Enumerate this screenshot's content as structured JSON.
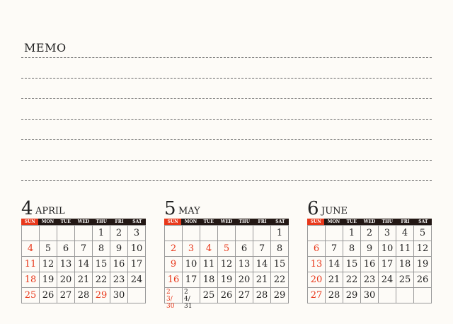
{
  "memo": {
    "title": "MEMO",
    "line_count": 7
  },
  "weekdays": [
    "SUN",
    "MON",
    "TUE",
    "WED",
    "THU",
    "FRI",
    "SAT"
  ],
  "accent_color": "#e8381b",
  "months": [
    {
      "number": "4",
      "name": "APRIL",
      "weeks": [
        [
          "",
          "",
          "",
          "",
          "1",
          "2",
          "3"
        ],
        [
          "4",
          "5",
          "6",
          "7",
          "8",
          "9",
          "10"
        ],
        [
          "11",
          "12",
          "13",
          "14",
          "15",
          "16",
          "17"
        ],
        [
          "18",
          "19",
          "20",
          "21",
          "22",
          "23",
          "24"
        ],
        [
          "25",
          "26",
          "27",
          "28",
          "29",
          "30",
          ""
        ]
      ],
      "red_days": [
        "4",
        "11",
        "18",
        "25",
        "29"
      ]
    },
    {
      "number": "5",
      "name": "MAY",
      "weeks": [
        [
          "",
          "",
          "",
          "",
          "",
          "",
          "1"
        ],
        [
          "2",
          "3",
          "4",
          "5",
          "6",
          "7",
          "8"
        ],
        [
          "9",
          "10",
          "11",
          "12",
          "13",
          "14",
          "15"
        ],
        [
          "16",
          "17",
          "18",
          "19",
          "20",
          "21",
          "22"
        ],
        [
          "23/30",
          "24/31",
          "25",
          "26",
          "27",
          "28",
          "29"
        ]
      ],
      "red_days": [
        "2",
        "3",
        "4",
        "5",
        "9",
        "16",
        "23/30"
      ]
    },
    {
      "number": "6",
      "name": "JUNE",
      "weeks": [
        [
          "",
          "",
          "1",
          "2",
          "3",
          "4",
          "5"
        ],
        [
          "6",
          "7",
          "8",
          "9",
          "10",
          "11",
          "12"
        ],
        [
          "13",
          "14",
          "15",
          "16",
          "17",
          "18",
          "19"
        ],
        [
          "20",
          "21",
          "22",
          "23",
          "24",
          "25",
          "26"
        ],
        [
          "27",
          "28",
          "29",
          "30",
          "",
          "",
          ""
        ]
      ],
      "red_days": [
        "6",
        "13",
        "20",
        "27"
      ]
    }
  ]
}
